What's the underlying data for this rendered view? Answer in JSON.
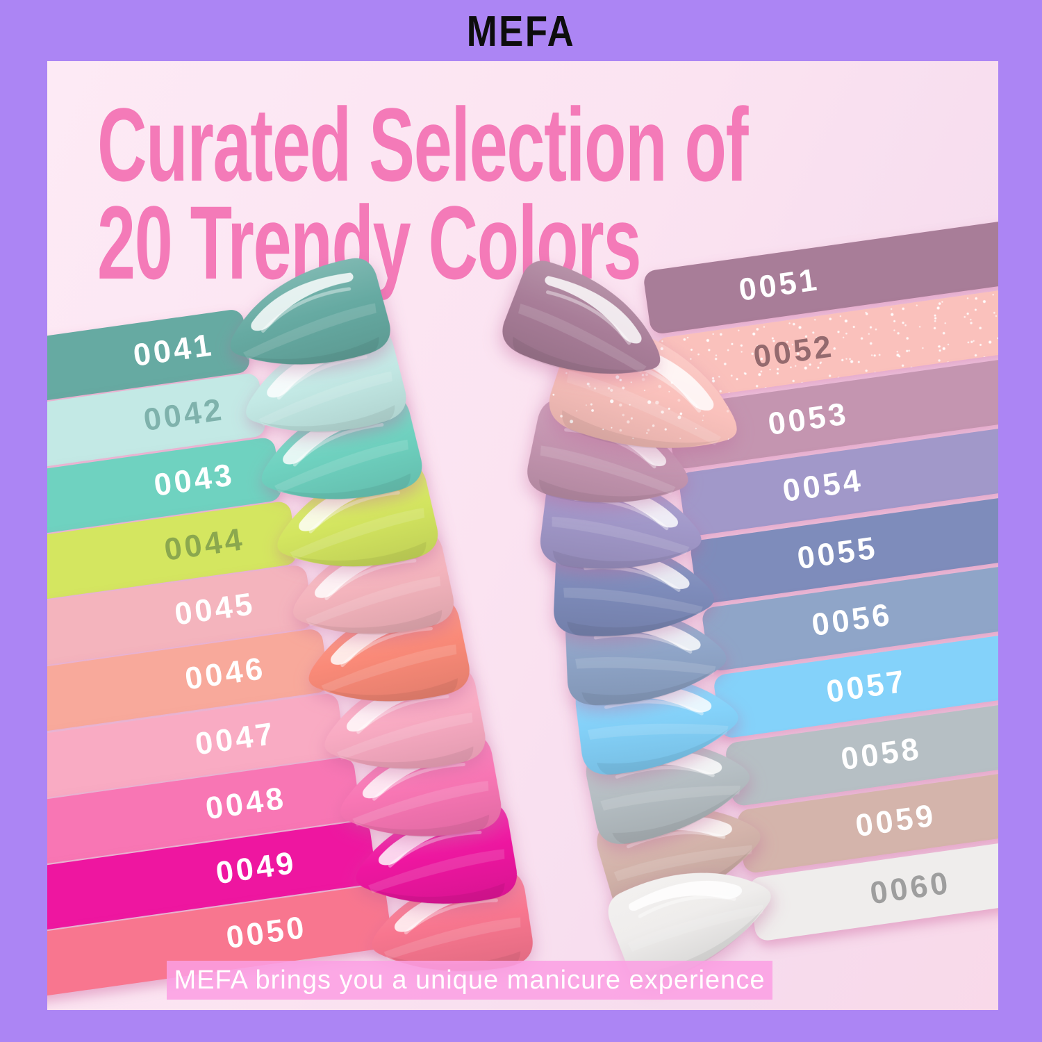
{
  "brand": "MEFA",
  "title": {
    "line1": "Curated Selection of",
    "line2": "20 Trendy Colors"
  },
  "banner": {
    "text": "MEFA brings you a unique manicure experience"
  },
  "palette": {
    "frame": "#ac85f4",
    "canvas1": "#fdeaf5",
    "canvas2": "#fbe3f1",
    "canvas3": "#f6dcee",
    "canvas4": "#f9d9e9",
    "title_pink": "#f47ab8",
    "banner_bg": "#fb9ee3",
    "brand_color": "#0d0d0d",
    "strip_shadow": "#d476aa"
  },
  "left_column": [
    {
      "number": "0041",
      "color": "#66aaa2",
      "label_color": "#ffffff"
    },
    {
      "number": "0042",
      "color": "#c3e9e5",
      "label_color": "#7fb2ac"
    },
    {
      "number": "0043",
      "color": "#6fd2c0",
      "label_color": "#ffffff"
    },
    {
      "number": "0044",
      "color": "#d4e660",
      "label_color": "#8ba84e"
    },
    {
      "number": "0045",
      "color": "#f4b4bd",
      "label_color": "#ffffff"
    },
    {
      "number": "0046",
      "color": "#f8a99b",
      "label_color": "#ffffff",
      "nail_color": "#fa8a78"
    },
    {
      "number": "0047",
      "color": "#f9abc3",
      "label_color": "#ffffff"
    },
    {
      "number": "0048",
      "color": "#f876b4",
      "label_color": "#ffffff"
    },
    {
      "number": "0049",
      "color": "#ee16a0",
      "label_color": "#ffffff"
    },
    {
      "number": "0050",
      "color": "#f8768f",
      "label_color": "#ffffff"
    }
  ],
  "right_column": [
    {
      "number": "0051",
      "color": "#a87d98",
      "label_color": "#ffffff"
    },
    {
      "number": "0052",
      "color": "#fac1bc",
      "label_color": "#946a6e",
      "glitter": true
    },
    {
      "number": "0053",
      "color": "#c495b0",
      "label_color": "#ffffff"
    },
    {
      "number": "0054",
      "color": "#a198c9",
      "label_color": "#ffffff"
    },
    {
      "number": "0055",
      "color": "#7e8cbb",
      "label_color": "#ffffff"
    },
    {
      "number": "0056",
      "color": "#8fa5c8",
      "label_color": "#ffffff"
    },
    {
      "number": "0057",
      "color": "#84d2fa",
      "label_color": "#ffffff"
    },
    {
      "number": "0058",
      "color": "#b6bfc4",
      "label_color": "#ffffff"
    },
    {
      "number": "0059",
      "color": "#d4b4ab",
      "label_color": "#ffffff"
    },
    {
      "number": "0060",
      "color": "#efedec",
      "label_color": "#9e9e9e"
    }
  ]
}
